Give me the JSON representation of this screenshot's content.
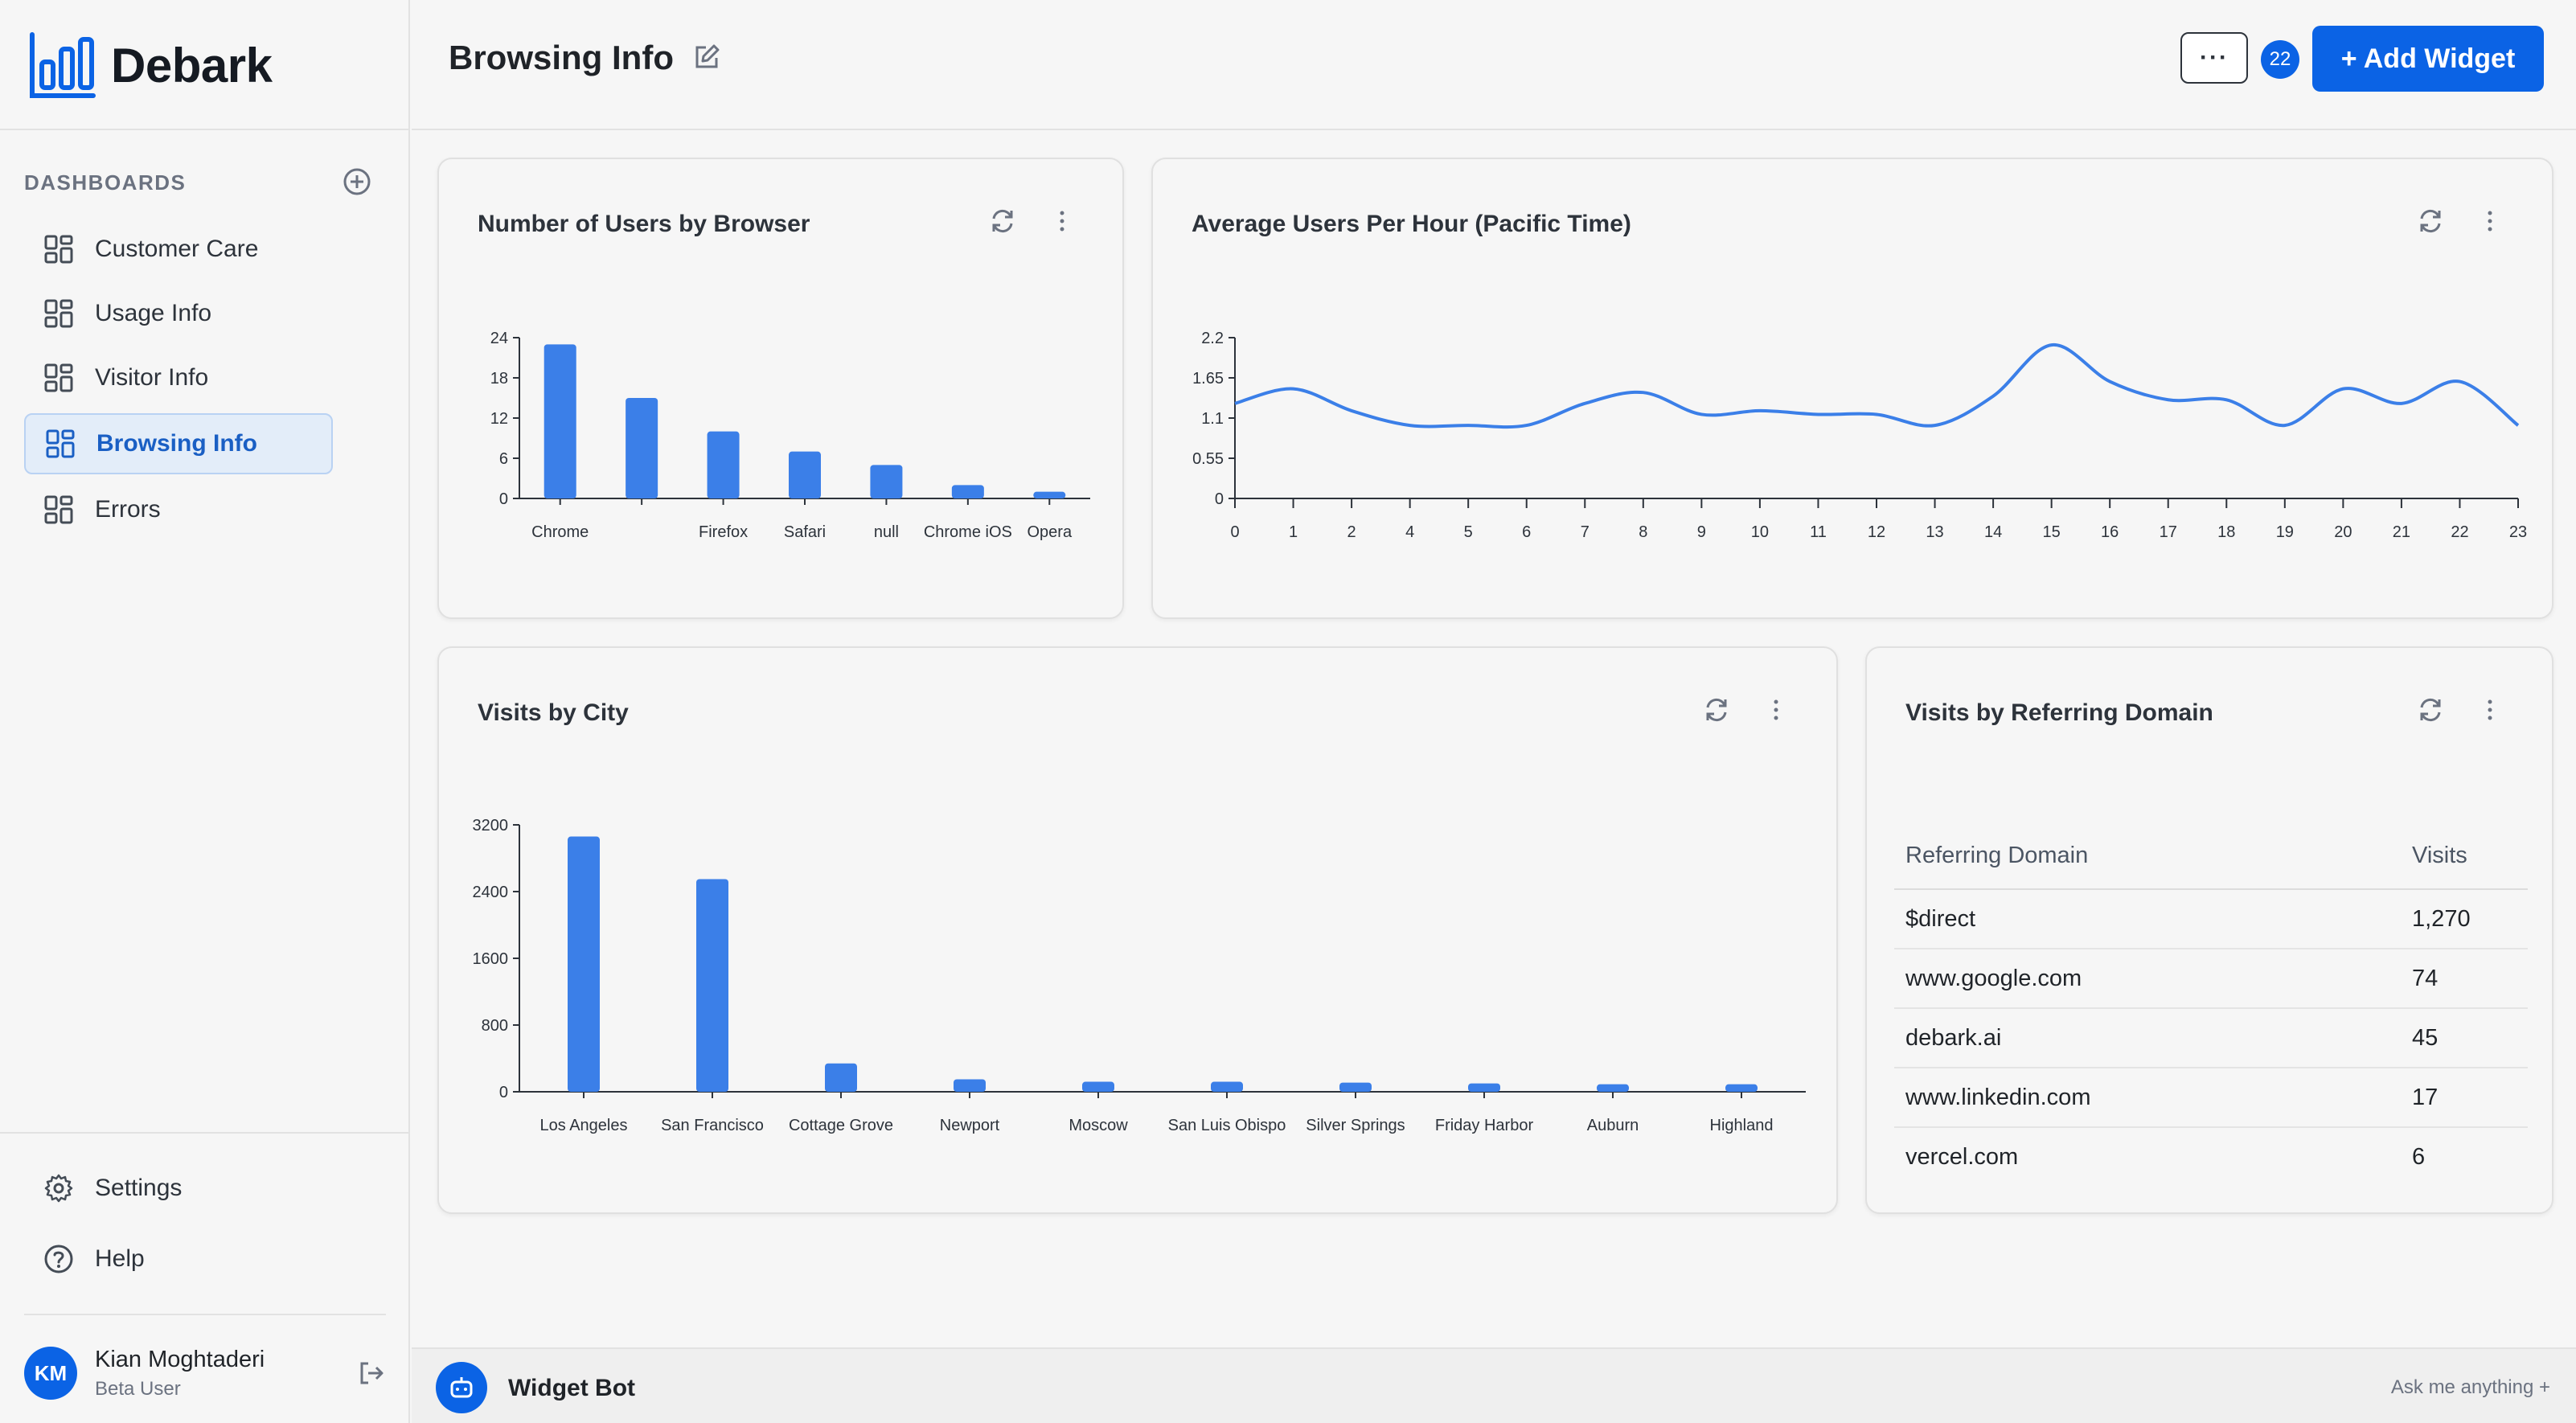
{
  "app": {
    "name": "Debark"
  },
  "sidebar": {
    "section_label": "DASHBOARDS",
    "items": [
      {
        "label": "Customer Care"
      },
      {
        "label": "Usage Info"
      },
      {
        "label": "Visitor Info"
      },
      {
        "label": "Browsing Info",
        "active": true
      },
      {
        "label": "Errors"
      }
    ],
    "settings_label": "Settings",
    "help_label": "Help",
    "user": {
      "initials": "KM",
      "name": "Kian Moghtaderi",
      "role": "Beta User"
    }
  },
  "header": {
    "title": "Browsing Info",
    "more_label": "···",
    "count_badge": "22",
    "add_widget_label": "+ Add Widget"
  },
  "widgets": {
    "browser": {
      "title": "Number of Users by Browser"
    },
    "hourly": {
      "title": "Average Users Per Hour (Pacific Time)"
    },
    "city": {
      "title": "Visits by City"
    },
    "domain": {
      "title": "Visits by Referring Domain",
      "columns": [
        "Referring Domain",
        "Visits"
      ],
      "rows": [
        [
          "$direct",
          "1,270"
        ],
        [
          "www.google.com",
          "74"
        ],
        [
          "debark.ai",
          "45"
        ],
        [
          "www.linkedin.com",
          "17"
        ],
        [
          "vercel.com",
          "6"
        ]
      ]
    }
  },
  "bottom_bar": {
    "label": "Widget Bot",
    "hint": "Ask me anything +"
  },
  "colors": {
    "accent": "#0b63e5",
    "bar": "#3b7fe8",
    "line": "#3b7fe8"
  },
  "chart_data": [
    {
      "type": "bar",
      "title": "Number of Users by Browser",
      "categories": [
        "Chrome",
        "",
        "Firefox",
        "Safari",
        "null",
        "Chrome iOS",
        "Opera"
      ],
      "values": [
        23,
        15,
        10,
        7,
        5,
        2,
        1
      ],
      "yticks": [
        0,
        6,
        12,
        18,
        24
      ],
      "ylim": [
        0,
        24
      ]
    },
    {
      "type": "line",
      "title": "Average Users Per Hour (Pacific Time)",
      "x": [
        0,
        1,
        2,
        4,
        5,
        6,
        7,
        8,
        9,
        10,
        11,
        12,
        13,
        14,
        15,
        16,
        17,
        18,
        19,
        20,
        21,
        22,
        23
      ],
      "values": [
        1.3,
        1.5,
        1.2,
        1.0,
        1.0,
        1.0,
        1.3,
        1.45,
        1.15,
        1.2,
        1.15,
        1.15,
        1.0,
        1.4,
        2.1,
        1.6,
        1.35,
        1.35,
        1.0,
        1.5,
        1.3,
        1.6,
        1.0
      ],
      "yticks": [
        0,
        0.55,
        1.1,
        1.65,
        2.2
      ],
      "ylim": [
        0,
        2.2
      ]
    },
    {
      "type": "bar",
      "title": "Visits by City",
      "categories": [
        "Los Angeles",
        "San Francisco",
        "Cottage Grove",
        "Newport",
        "Moscow",
        "San Luis Obispo",
        "Silver Springs",
        "Friday Harbor",
        "Auburn",
        "Highland"
      ],
      "values": [
        3060,
        2550,
        340,
        150,
        120,
        120,
        110,
        100,
        90,
        90
      ],
      "yticks": [
        0,
        800,
        1600,
        2400,
        3200
      ],
      "ylim": [
        0,
        3200
      ]
    }
  ]
}
